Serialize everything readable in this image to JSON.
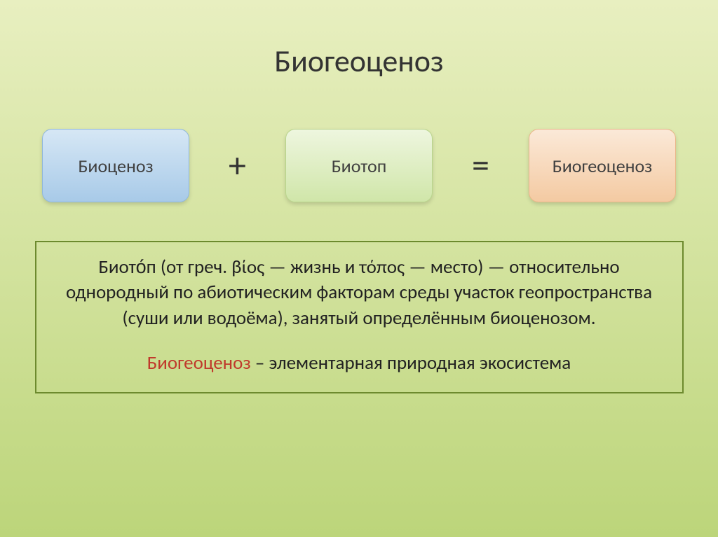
{
  "background": {
    "top": "#e8efc0",
    "bottom": "#bcd57a"
  },
  "title": {
    "text": "Биогеоценоз",
    "color": "#333333",
    "fontsize": 44
  },
  "equation": {
    "box1": {
      "label": "Биоценоз",
      "grad_top": "#d6e7f5",
      "grad_bottom": "#a8cae8",
      "border": "#8fb7db"
    },
    "op1": "+",
    "box2": {
      "label": "Биотоп",
      "grad_top": "#eef6df",
      "grad_bottom": "#d0e6a9",
      "border": "#b9d58c"
    },
    "op2": "=",
    "box3": {
      "label": "Биогеоценоз",
      "grad_top": "#fbe9d8",
      "grad_bottom": "#f4caa2",
      "border": "#e9b688"
    }
  },
  "definition": {
    "border": "#6d8a2e",
    "highlight_color": "#c0392b",
    "para1": "Биото́п (от греч. βίος — жизнь и τόπος — место) — относительно однородный по абиотическим факторам среды участок геопространства (суши или водоёма), занятый определённым биоценозом.",
    "para2_highlight": "Биогеоценоз",
    "para2_rest": " – элементарная природная экосистема"
  }
}
